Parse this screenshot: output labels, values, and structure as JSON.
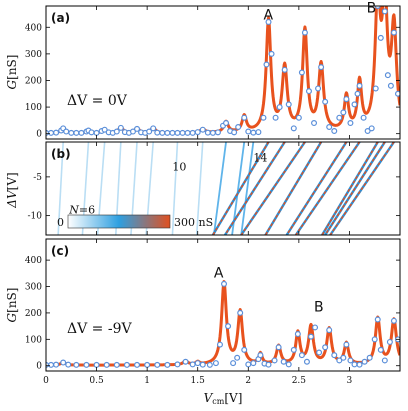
{
  "chart_data": [
    {
      "panel": "(a)",
      "type": "line",
      "xlim": [
        0,
        3.5
      ],
      "ylim": [
        -20,
        480
      ],
      "ylabel_var": "G",
      "ylabel_unit": "[nS]",
      "yticks": [
        0,
        100,
        200,
        300,
        400
      ],
      "annotation": "ΔV = 0V",
      "labels": [
        {
          "text": "A",
          "x": 2.15,
          "y": 430
        },
        {
          "text": "B",
          "x": 3.17,
          "y": 455
        }
      ],
      "series": [
        {
          "name": "fit",
          "style": "line",
          "color": "#e8521e",
          "peaks": [
            [
              0.17,
              20,
              0.025
            ],
            [
              0.42,
              12,
              0.02
            ],
            [
              0.58,
              15,
              0.02
            ],
            [
              0.74,
              22,
              0.025
            ],
            [
              0.9,
              18,
              0.025
            ],
            [
              1.06,
              20,
              0.025
            ],
            [
              1.55,
              15,
              0.025
            ],
            [
              1.78,
              40,
              0.025
            ],
            [
              1.96,
              60,
              0.025
            ],
            [
              2.2,
              420,
              0.028
            ],
            [
              2.36,
              240,
              0.03
            ],
            [
              2.56,
              380,
              0.028
            ],
            [
              2.72,
              250,
              0.03
            ],
            [
              2.97,
              130,
              0.025
            ],
            [
              3.1,
              180,
              0.025
            ],
            [
              3.28,
              480,
              0.03
            ],
            [
              3.35,
              460,
              0.03
            ],
            [
              3.44,
              380,
              0.03
            ]
          ],
          "baseline": 2
        },
        {
          "name": "data",
          "style": "markers",
          "color": "#5b8fd9",
          "x": [
            0,
            0.05,
            0.1,
            0.15,
            0.17,
            0.2,
            0.25,
            0.3,
            0.35,
            0.4,
            0.42,
            0.45,
            0.5,
            0.55,
            0.58,
            0.62,
            0.66,
            0.7,
            0.74,
            0.78,
            0.82,
            0.86,
            0.9,
            0.94,
            0.98,
            1.02,
            1.06,
            1.1,
            1.15,
            1.2,
            1.25,
            1.3,
            1.35,
            1.4,
            1.45,
            1.5,
            1.55,
            1.6,
            1.65,
            1.7,
            1.75,
            1.78,
            1.82,
            1.86,
            1.9,
            1.96,
            2.0,
            2.05,
            2.1,
            2.15,
            2.18,
            2.2,
            2.23,
            2.27,
            2.31,
            2.36,
            2.4,
            2.45,
            2.5,
            2.53,
            2.56,
            2.6,
            2.65,
            2.69,
            2.72,
            2.76,
            2.8,
            2.85,
            2.9,
            2.94,
            2.97,
            3.01,
            3.05,
            3.08,
            3.1,
            3.14,
            3.18,
            3.22,
            3.26,
            3.28,
            3.31,
            3.35,
            3.38,
            3.41,
            3.44,
            3.48
          ],
          "y": [
            3,
            3,
            4,
            12,
            20,
            8,
            3,
            3,
            3,
            8,
            12,
            5,
            3,
            10,
            15,
            5,
            3,
            8,
            22,
            6,
            3,
            8,
            18,
            5,
            3,
            8,
            20,
            4,
            3,
            3,
            3,
            3,
            3,
            3,
            3,
            6,
            15,
            4,
            3,
            5,
            30,
            40,
            10,
            5,
            25,
            60,
            8,
            4,
            6,
            60,
            260,
            420,
            300,
            60,
            100,
            240,
            110,
            20,
            60,
            230,
            380,
            160,
            40,
            170,
            250,
            120,
            25,
            10,
            60,
            80,
            130,
            40,
            110,
            150,
            180,
            60,
            10,
            20,
            170,
            480,
            360,
            460,
            220,
            180,
            380,
            150
          ]
        }
      ]
    },
    {
      "panel": "(b)",
      "type": "heatmap",
      "xlim": [
        0,
        3.5
      ],
      "ylim": [
        -12.5,
        -0.5
      ],
      "ylabel_var": "ΔV",
      "ylabel_unit": "[V]",
      "yticks": [
        -10,
        -5
      ],
      "colorbar": {
        "min_label": "0",
        "max_label": "300 nS",
        "colors": [
          "#ffffff",
          "#2e9fe0",
          "#e05020"
        ]
      },
      "labels": [
        {
          "text": "N=6",
          "italic_part": "N",
          "x": 0.23,
          "y": -9.7
        },
        {
          "text": "10",
          "x": 1.25,
          "y": -4.2
        },
        {
          "text": "14",
          "x": 2.05,
          "y": -3.0
        }
      ]
    },
    {
      "panel": "(c)",
      "type": "line",
      "xlim": [
        0,
        3.5
      ],
      "ylim": [
        -20,
        480
      ],
      "xlabel_var": "V",
      "xlabel_sub": "cm",
      "xlabel_unit": "[V]",
      "ylabel_var": "G",
      "ylabel_unit": "[nS]",
      "yticks": [
        0,
        100,
        200,
        300,
        400
      ],
      "xticks": [
        0,
        0.5,
        1,
        1.5,
        2,
        2.5,
        3
      ],
      "xticklabels": [
        "0",
        "0.5",
        "1",
        "1.5",
        "2",
        "2.5",
        "3"
      ],
      "annotation": "ΔV = -9V",
      "labels": [
        {
          "text": "A",
          "x": 1.66,
          "y": 335
        },
        {
          "text": "B",
          "x": 2.65,
          "y": 205
        }
      ],
      "series": [
        {
          "name": "fit",
          "style": "line",
          "color": "#e8521e",
          "peaks": [
            [
              0.17,
              12,
              0.025
            ],
            [
              1.38,
              15,
              0.025
            ],
            [
              1.5,
              10,
              0.02
            ],
            [
              1.76,
              310,
              0.028
            ],
            [
              1.92,
              200,
              0.028
            ],
            [
              2.12,
              40,
              0.02
            ],
            [
              2.3,
              70,
              0.025
            ],
            [
              2.49,
              120,
              0.025
            ],
            [
              2.62,
              145,
              0.028
            ],
            [
              2.8,
              135,
              0.028
            ],
            [
              2.97,
              80,
              0.025
            ],
            [
              3.28,
              175,
              0.028
            ],
            [
              3.44,
              170,
              0.03
            ]
          ],
          "baseline": 2
        },
        {
          "name": "data",
          "style": "markers",
          "color": "#5b8fd9",
          "x": [
            0,
            0.05,
            0.1,
            0.17,
            0.22,
            0.3,
            0.4,
            0.5,
            0.6,
            0.7,
            0.8,
            0.9,
            1.0,
            1.1,
            1.2,
            1.3,
            1.38,
            1.45,
            1.5,
            1.55,
            1.62,
            1.68,
            1.72,
            1.76,
            1.8,
            1.85,
            1.89,
            1.92,
            1.96,
            2.0,
            2.05,
            2.1,
            2.12,
            2.16,
            2.2,
            2.26,
            2.3,
            2.35,
            2.4,
            2.45,
            2.49,
            2.53,
            2.58,
            2.62,
            2.66,
            2.7,
            2.76,
            2.8,
            2.85,
            2.9,
            2.94,
            2.97,
            3.01,
            3.05,
            3.1,
            3.15,
            3.2,
            3.25,
            3.28,
            3.31,
            3.35,
            3.4,
            3.44,
            3.48
          ],
          "y": [
            3,
            3,
            4,
            12,
            4,
            3,
            3,
            3,
            3,
            3,
            3,
            3,
            3,
            3,
            3,
            5,
            15,
            5,
            10,
            4,
            3,
            10,
            80,
            310,
            150,
            10,
            30,
            200,
            60,
            5,
            10,
            25,
            40,
            8,
            4,
            20,
            70,
            15,
            5,
            60,
            120,
            40,
            15,
            110,
            145,
            50,
            70,
            135,
            40,
            20,
            30,
            80,
            20,
            5,
            4,
            15,
            30,
            100,
            175,
            60,
            20,
            90,
            170,
            100
          ]
        }
      ]
    }
  ]
}
